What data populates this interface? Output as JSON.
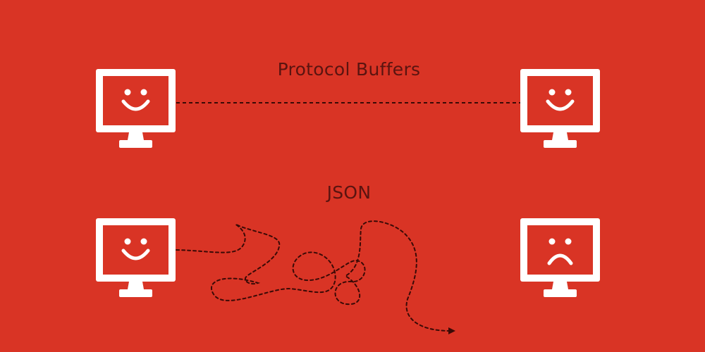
{
  "labels": {
    "protocol_buffers": "Protocol Buffers",
    "json": "JSON"
  },
  "computers": [
    {
      "id": "top-left",
      "face": "smile"
    },
    {
      "id": "top-right",
      "face": "smile"
    },
    {
      "id": "bottom-left",
      "face": "smile"
    },
    {
      "id": "bottom-right",
      "face": "frown"
    }
  ],
  "colors": {
    "background": "#d93425",
    "monitor": "#ffffff",
    "line": "#3a0a06",
    "text": "#5a1410"
  },
  "icons": {
    "monitor": "monitor-icon",
    "smile": "smile-icon",
    "frown": "frown-icon",
    "arrowhead": "arrowhead-icon"
  }
}
